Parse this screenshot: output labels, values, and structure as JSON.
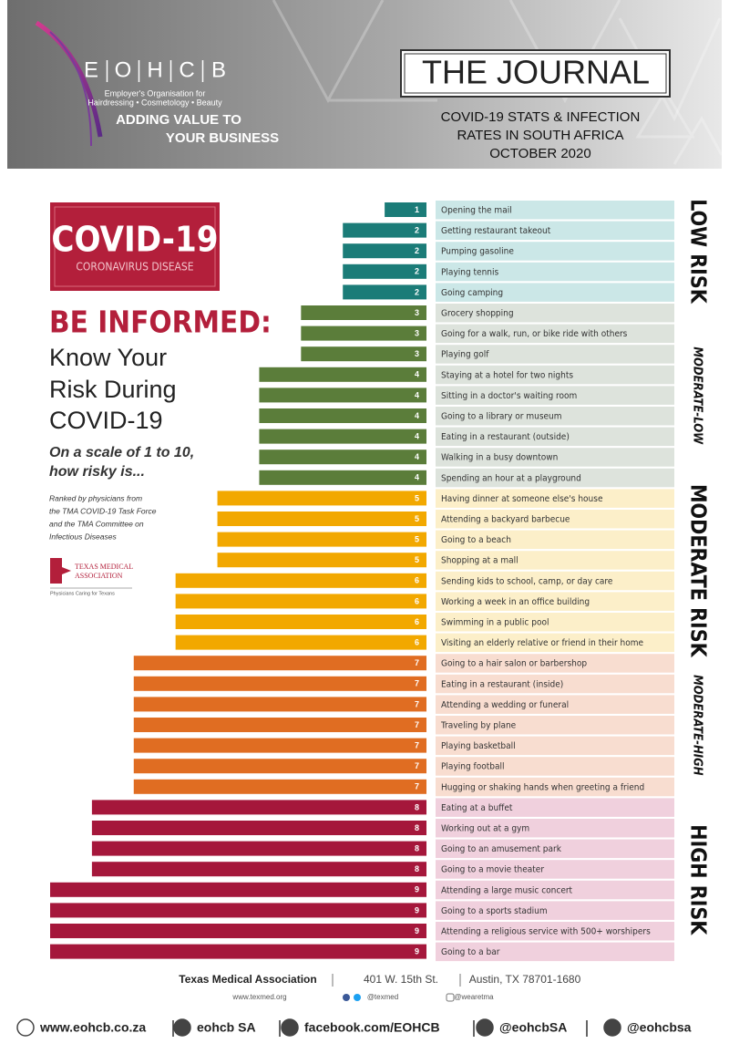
{
  "header": {
    "logo_letters": [
      "E",
      "O",
      "H",
      "C",
      "B"
    ],
    "logo_sub1": "Employer's Organisation for",
    "logo_sub2": "Hairdressing • Cosmetology • Beauty",
    "tagline1": "ADDING VALUE TO",
    "tagline2": "YOUR BUSINESS",
    "journal": "THE JOURNAL",
    "subtitle1": "COVID-19 STATS & INFECTION",
    "subtitle2": "RATES IN SOUTH AFRICA",
    "subtitle3": "OCTOBER 2020"
  },
  "panel": {
    "badge_title": "COVID-19",
    "badge_sub": "CORONAVIRUS DISEASE",
    "headline": "BE INFORMED:",
    "lead": [
      "Know Your",
      "Risk During",
      "COVID-19"
    ],
    "question": [
      "On a scale of 1 to 10,",
      "how risky is..."
    ],
    "note": [
      "Ranked by physicians from",
      "the TMA COVID-19 Task Force",
      "and the TMA Committee on",
      "Infectious Diseases"
    ],
    "tma_logo": [
      "TEXAS MEDICAL",
      "ASSOCIATION"
    ],
    "tma_tagline": "Physicians Caring for Texans"
  },
  "chart_data": {
    "type": "bar",
    "orientation": "horizontal",
    "xlim": [
      0,
      9
    ],
    "series": [
      {
        "name": "LOW RISK",
        "color": "#1b7c78",
        "label_bg": "#cbe7e7",
        "categories": [
          "Opening the mail",
          "Getting restaurant takeout",
          "Pumping gasoline",
          "Playing tennis",
          "Going camping"
        ],
        "values": [
          1,
          2,
          2,
          2,
          2
        ]
      },
      {
        "name": "MODERATE-LOW",
        "color": "#5b7d3a",
        "label_bg": "#dde3dc",
        "categories": [
          "Grocery shopping",
          "Going for a walk, run, or bike ride with others",
          "Playing golf",
          "Staying at a hotel for two nights",
          "Sitting in a doctor's waiting room",
          "Going to a library or museum",
          "Eating in a restaurant (outside)",
          "Walking in a busy downtown",
          "Spending an hour at a playground"
        ],
        "values": [
          3,
          3,
          3,
          4,
          4,
          4,
          4,
          4,
          4
        ]
      },
      {
        "name": "MODERATE RISK",
        "color": "#f2a800",
        "label_bg": "#fcefc9",
        "categories": [
          "Having dinner at someone else's house",
          "Attending a backyard barbecue",
          "Going to a beach",
          "Shopping at a mall",
          "Sending kids to school, camp, or day care",
          "Working a week in an office building",
          "Swimming in a public pool",
          "Visiting an elderly relative or friend in their home"
        ],
        "values": [
          5,
          5,
          5,
          5,
          6,
          6,
          6,
          6
        ]
      },
      {
        "name": "MODERATE-HIGH",
        "color": "#e06d22",
        "label_bg": "#f8ddd0",
        "categories": [
          "Going to a hair salon or barbershop",
          "Eating in a restaurant (inside)",
          "Attending a wedding or funeral",
          "Traveling by plane",
          "Playing basketball",
          "Playing football",
          "Hugging or shaking hands when greeting a friend"
        ],
        "values": [
          7,
          7,
          7,
          7,
          7,
          7,
          7
        ]
      },
      {
        "name": "HIGH RISK",
        "color": "#a5173b",
        "label_bg": "#f0d0dd",
        "categories": [
          "Eating at a buffet",
          "Working out at a gym",
          "Going to an amusement park",
          "Going to a movie theater",
          "Attending a large music concert",
          "Going to a sports stadium",
          "Attending a religious service with 500+ worshipers",
          "Going to a bar"
        ],
        "values": [
          8,
          8,
          8,
          8,
          9,
          9,
          9,
          9
        ]
      }
    ]
  },
  "footer": {
    "org": "Texas Medical Association",
    "address": "401 W. 15th St.",
    "city": "Austin, TX 78701-1680",
    "web": "www.texmed.org",
    "twitter": "@texmed",
    "instagram": "@wearetma"
  },
  "contacts": [
    "www.eohcb.co.za",
    "eohcb SA",
    "facebook.com/EOHCB",
    "@eohcbSA",
    "@eohcbsa"
  ]
}
